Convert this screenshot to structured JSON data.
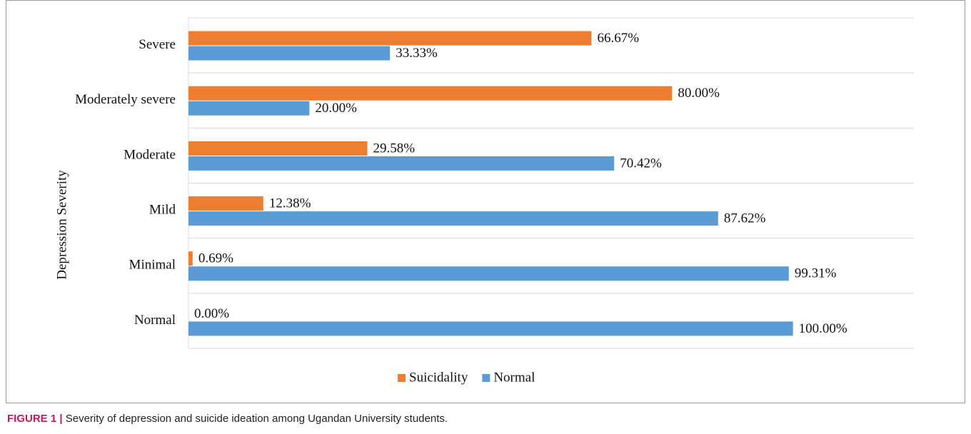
{
  "chart_data": {
    "type": "bar",
    "orientation": "horizontal",
    "y_axis_label": "Depression Severity",
    "categories": [
      "Severe",
      "Moderately severe",
      "Moderate",
      "Mild",
      "Minimal",
      "Normal"
    ],
    "series": [
      {
        "name": "Suicidality",
        "color": "#ED7D31",
        "values": [
          66.67,
          80.0,
          29.58,
          12.38,
          0.69,
          0.0
        ],
        "value_labels": [
          "66.67%",
          "80.00%",
          "29.58%",
          "12.38%",
          "0.69%",
          "0.00%"
        ]
      },
      {
        "name": "Normal",
        "color": "#5B9BD5",
        "values": [
          33.33,
          20.0,
          70.42,
          87.62,
          99.31,
          100.0
        ],
        "value_labels": [
          "33.33%",
          "20.00%",
          "70.42%",
          "87.62%",
          "99.31%",
          "100.00%"
        ]
      }
    ],
    "xlim": [
      0,
      120
    ],
    "grid": true,
    "legend": "bottom"
  },
  "caption": {
    "label": "FIGURE 1 |",
    "text": "Severity of depression and suicide ideation among Ugandan University students."
  }
}
